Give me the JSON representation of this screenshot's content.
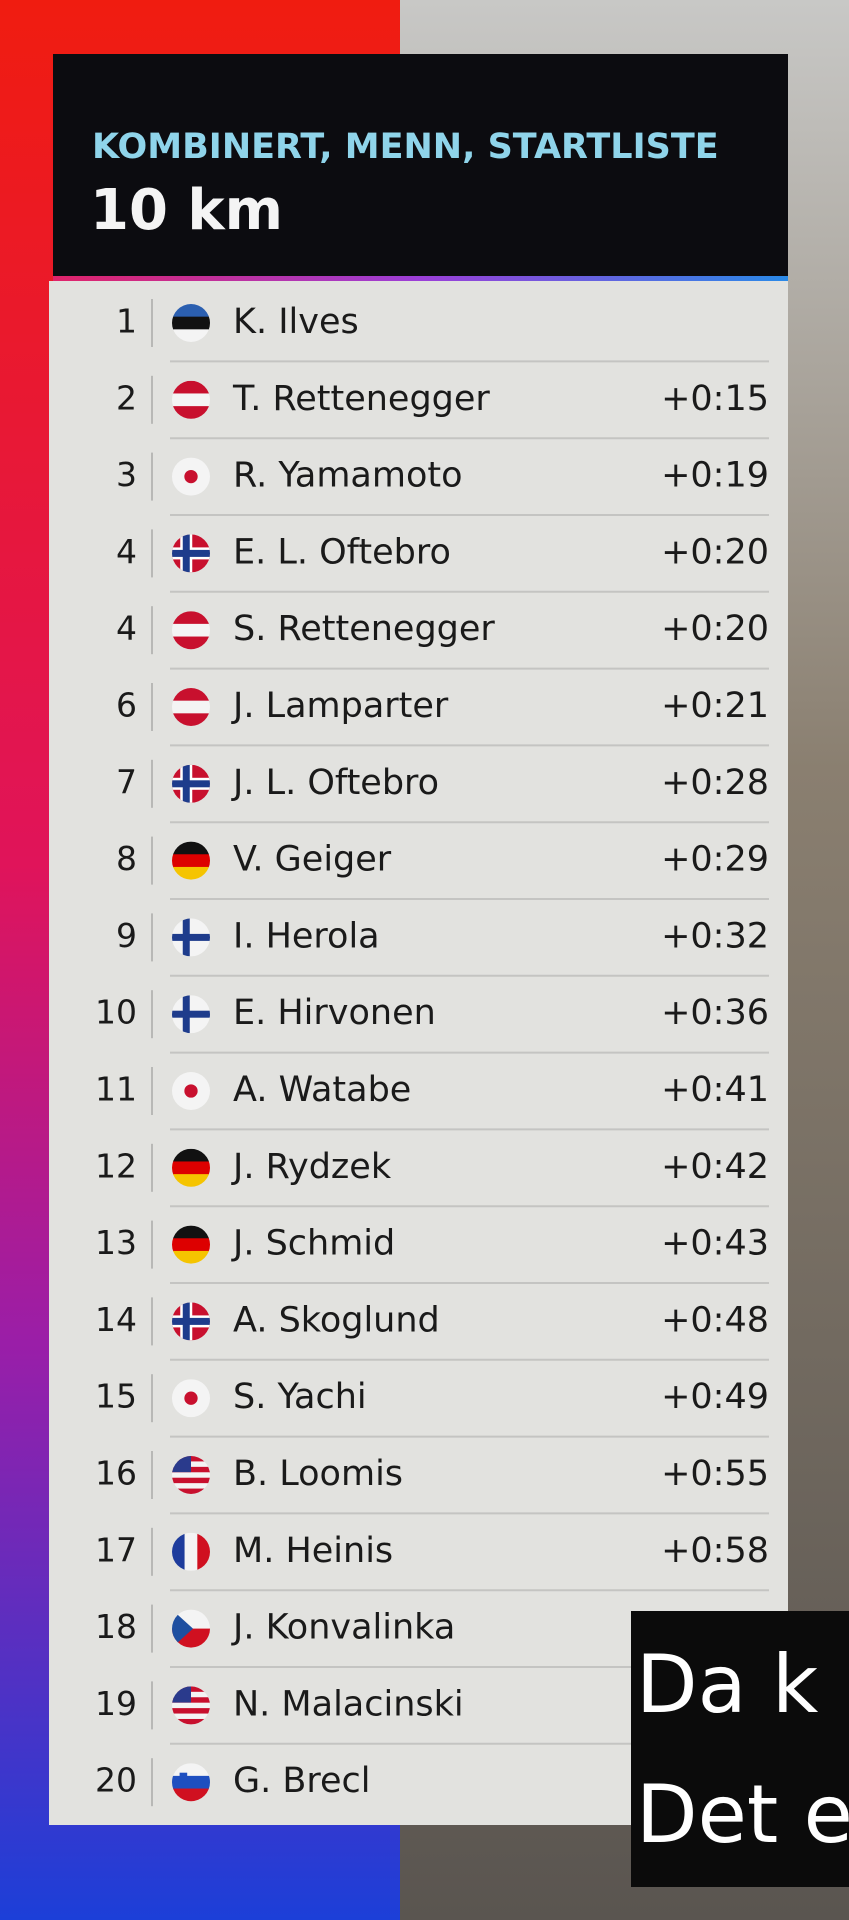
{
  "header": {
    "title": "KOMBINERT, MENN, STARTLISTE",
    "subtitle": "10 km"
  },
  "rows": [
    {
      "rank": 1,
      "name": "K. Ilves"
    },
    {
      "rank": 2,
      "name": "T. Rettenegger",
      "time": "+0:15"
    },
    {
      "rank": 3,
      "name": "R. Yamamoto",
      "time": "+0:19"
    },
    {
      "rank": 4,
      "name": "E. L. Oftebro",
      "time": "+0:20"
    },
    {
      "rank": 4,
      "name": "S. Rettenegger",
      "time": "+0:20"
    },
    {
      "rank": 6,
      "name": "J. Lamparter",
      "time": "+0:21"
    },
    {
      "rank": 7,
      "name": "J. L. Oftebro",
      "time": "+0:28"
    },
    {
      "rank": 8,
      "name": "V. Geiger",
      "time": "+0:29"
    },
    {
      "rank": 9,
      "name": "I. Herola",
      "time": "+0:32"
    },
    {
      "rank": 10,
      "name": "E. Hirvonen",
      "time": "+0:36"
    },
    {
      "rank": 11,
      "name": "A. Watabe",
      "time": "+0:41"
    },
    {
      "rank": 12,
      "name": "J. Rydzek",
      "time": "+0:42"
    },
    {
      "rank": 13,
      "name": "J. Schmid",
      "time": "+0:43"
    },
    {
      "rank": 14,
      "name": "A. Skoglund",
      "time": "+0:48"
    },
    {
      "rank": 15,
      "name": "S. Yachi",
      "time": "+0:49"
    },
    {
      "rank": 16,
      "name": "B. Loomis",
      "time": "+0:55"
    },
    {
      "rank": 17,
      "name": "M. Heinis",
      "time": "+0:58"
    },
    {
      "rank": 18,
      "name": "J. Konvalinka"
    },
    {
      "rank": 19,
      "name": "N. Malacinski"
    },
    {
      "rank": 20,
      "name": "G. Brecl"
    }
  ],
  "subtitles": [
    "Da k",
    "Det e"
  ]
}
